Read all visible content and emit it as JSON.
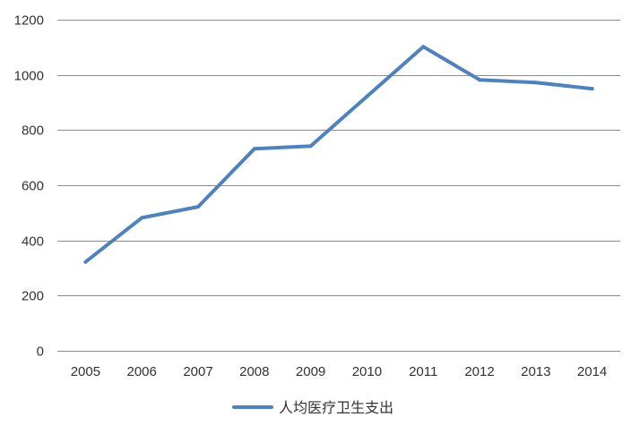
{
  "chart_data": {
    "type": "line",
    "title": "",
    "xlabel": "",
    "ylabel": "",
    "categories": [
      "2005",
      "2006",
      "2007",
      "2008",
      "2009",
      "2010",
      "2011",
      "2012",
      "2013",
      "2014"
    ],
    "series": [
      {
        "name": "人均医疗卫生支出",
        "color": "#4f81bd",
        "values": [
          322,
          482,
          522,
          732,
          742,
          922,
          1102,
          982,
          972,
          950
        ]
      }
    ],
    "ylim": [
      0,
      1200
    ],
    "yticks": [
      0,
      200,
      400,
      600,
      800,
      1000,
      1200
    ],
    "grid": true,
    "legend": "bottom",
    "colors": {
      "line": "#4f81bd",
      "grid": "#8c8c8c",
      "text": "#333333"
    }
  }
}
